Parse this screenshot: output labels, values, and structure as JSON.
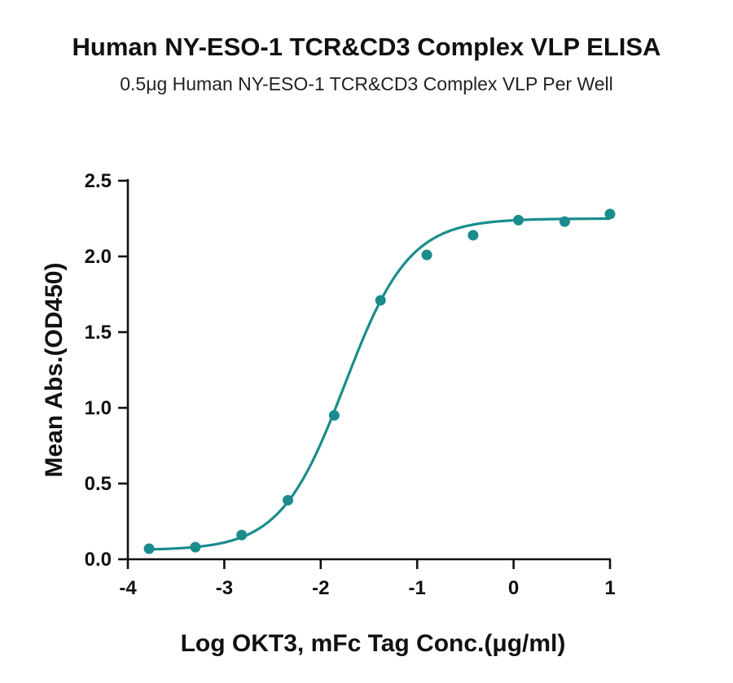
{
  "chart_data": {
    "type": "scatter",
    "title": "Human NY-ESO-1 TCR&CD3 Complex VLP ELISA",
    "subtitle": "0.5μg Human NY-ESO-1 TCR&CD3 Complex VLP Per Well",
    "xlabel": "Log OKT3, mFc Tag Conc.(μg/ml)",
    "ylabel": "Mean Abs.(OD450)",
    "xlim": [
      -4,
      1
    ],
    "ylim": [
      0,
      2.5
    ],
    "x_ticks": [
      "-4",
      "-3",
      "-2",
      "-1",
      "0",
      "1"
    ],
    "y_ticks": [
      "0.0",
      "0.5",
      "1.0",
      "1.5",
      "2.0",
      "2.5"
    ],
    "grid": false,
    "legend": "none",
    "marker_color": "#1a8c8c",
    "line_color": "#1a8c8c",
    "series": [
      {
        "x": [
          -3.78,
          -3.3,
          -2.82,
          -2.34,
          -1.86,
          -1.38,
          -0.9,
          -0.42,
          0.05,
          0.53,
          1.0
        ],
        "y": [
          0.07,
          0.08,
          0.16,
          0.39,
          0.95,
          1.71,
          2.01,
          2.14,
          2.24,
          2.23,
          2.28
        ]
      }
    ],
    "fit": {
      "model": "4PL",
      "bottom": 0.06,
      "top": 2.25,
      "log_ec50": -1.75,
      "hill": 1.3
    }
  }
}
